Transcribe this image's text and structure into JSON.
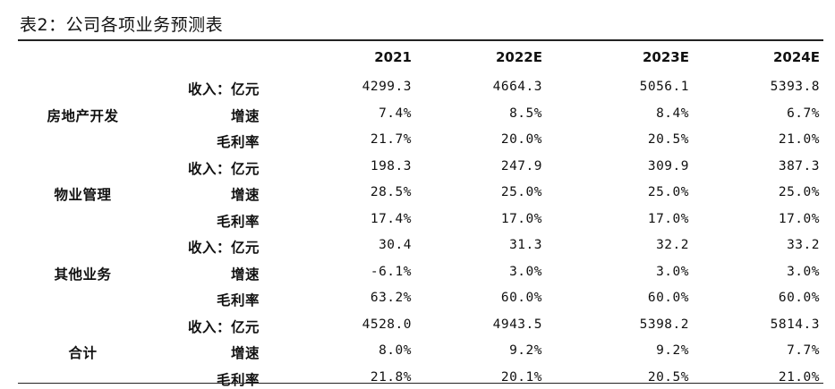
{
  "title": "表2：公司各项业务预测表",
  "columns": [
    "2021",
    "2022E",
    "2023E",
    "2024E"
  ],
  "metrics": [
    "收入：亿元",
    "增速",
    "毛利率"
  ],
  "segments": [
    {
      "name": "房地产开发",
      "rows": [
        [
          "4299.3",
          "4664.3",
          "5056.1",
          "5393.8"
        ],
        [
          "7.4%",
          "8.5%",
          "8.4%",
          "6.7%"
        ],
        [
          "21.7%",
          "20.0%",
          "20.5%",
          "21.0%"
        ]
      ]
    },
    {
      "name": "物业管理",
      "rows": [
        [
          "198.3",
          "247.9",
          "309.9",
          "387.3"
        ],
        [
          "28.5%",
          "25.0%",
          "25.0%",
          "25.0%"
        ],
        [
          "17.4%",
          "17.0%",
          "17.0%",
          "17.0%"
        ]
      ]
    },
    {
      "name": "其他业务",
      "rows": [
        [
          "30.4",
          "31.3",
          "32.2",
          "33.2"
        ],
        [
          "-6.1%",
          "3.0%",
          "3.0%",
          "3.0%"
        ],
        [
          "63.2%",
          "60.0%",
          "60.0%",
          "60.0%"
        ]
      ]
    },
    {
      "name": "合计",
      "rows": [
        [
          "4528.0",
          "4943.5",
          "5398.2",
          "5814.3"
        ],
        [
          "8.0%",
          "9.2%",
          "9.2%",
          "7.7%"
        ],
        [
          "21.8%",
          "20.1%",
          "20.5%",
          "21.0%"
        ]
      ]
    }
  ]
}
